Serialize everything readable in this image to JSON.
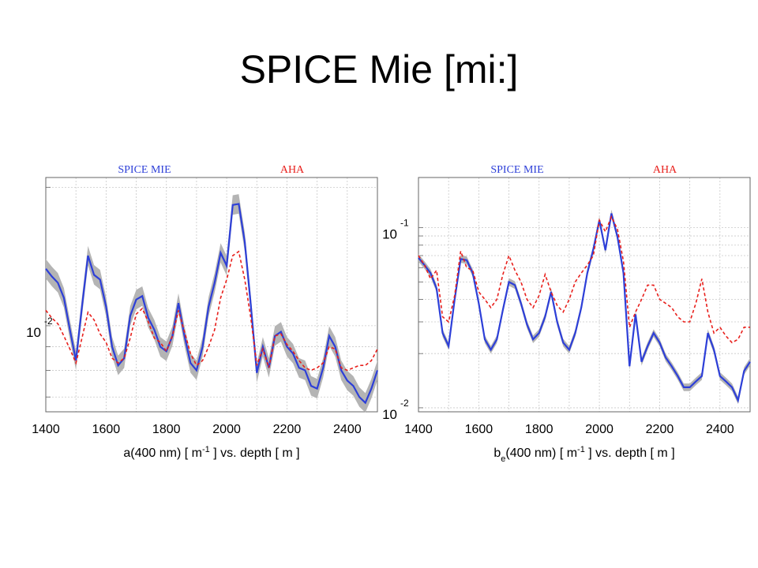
{
  "slide": {
    "title": "SPICE Mie [mi:]"
  },
  "chart_data": [
    {
      "type": "line",
      "xlabel_parts": [
        "a(400 nm) [ m",
        "-1",
        " ] vs. depth [ m ]"
      ],
      "xlim": [
        1400,
        2500
      ],
      "xticks": [
        1400,
        1600,
        1800,
        2000,
        2200,
        2400
      ],
      "yscale": "log",
      "ylim": [
        0.0065,
        0.021
      ],
      "yticklabels": [
        {
          "base": "10",
          "exp": "-2",
          "value": 0.01
        }
      ],
      "grid": true,
      "legend": [
        {
          "name": "SPICE MIE",
          "color": "#2d3fd8"
        },
        {
          "name": "AHA",
          "color": "#e8201c"
        }
      ],
      "x": [
        1400,
        1420,
        1440,
        1460,
        1480,
        1500,
        1520,
        1540,
        1560,
        1580,
        1600,
        1620,
        1640,
        1660,
        1680,
        1700,
        1720,
        1740,
        1760,
        1780,
        1800,
        1820,
        1840,
        1860,
        1880,
        1900,
        1920,
        1940,
        1960,
        1980,
        2000,
        2020,
        2040,
        2060,
        2080,
        2100,
        2120,
        2140,
        2160,
        2180,
        2200,
        2220,
        2240,
        2260,
        2280,
        2300,
        2320,
        2340,
        2360,
        2380,
        2400,
        2420,
        2440,
        2460,
        2480,
        2500
      ],
      "series": [
        {
          "name": "SPICE MIE",
          "color": "#2d3fd8",
          "values": [
            0.0133,
            0.0128,
            0.0124,
            0.0115,
            0.0098,
            0.0084,
            0.011,
            0.0142,
            0.0129,
            0.0126,
            0.011,
            0.009,
            0.0082,
            0.0085,
            0.0105,
            0.0114,
            0.0116,
            0.0104,
            0.0098,
            0.009,
            0.0088,
            0.0095,
            0.0112,
            0.0095,
            0.0083,
            0.008,
            0.009,
            0.011,
            0.0124,
            0.0144,
            0.0135,
            0.0183,
            0.0184,
            0.0152,
            0.0111,
            0.0079,
            0.009,
            0.0081,
            0.0095,
            0.0097,
            0.009,
            0.0087,
            0.0081,
            0.008,
            0.0074,
            0.0073,
            0.0081,
            0.0095,
            0.009,
            0.008,
            0.0076,
            0.0074,
            0.007,
            0.0068,
            0.0073,
            0.008
          ]
        },
        {
          "name": "AHA",
          "color": "#e8201c",
          "values": [
            0.0108,
            0.0104,
            0.0101,
            0.0095,
            0.0089,
            0.0083,
            0.0094,
            0.0107,
            0.0103,
            0.0096,
            0.0092,
            0.0085,
            0.0083,
            0.0085,
            0.0094,
            0.0106,
            0.0109,
            0.0102,
            0.0094,
            0.0092,
            0.0088,
            0.0095,
            0.0108,
            0.0097,
            0.0087,
            0.0082,
            0.0084,
            0.009,
            0.0098,
            0.0115,
            0.0126,
            0.0142,
            0.0145,
            0.0126,
            0.0104,
            0.0082,
            0.0089,
            0.0081,
            0.0095,
            0.0096,
            0.0091,
            0.0088,
            0.0084,
            0.0081,
            0.008,
            0.0081,
            0.0083,
            0.009,
            0.0089,
            0.0081,
            0.008,
            0.0081,
            0.0082,
            0.0082,
            0.0084,
            0.0089
          ]
        }
      ]
    },
    {
      "type": "line",
      "xlabel_parts": [
        "b",
        "e",
        "(400 nm) [ m",
        "-1",
        " ] vs. depth [ m ]"
      ],
      "xlim": [
        1400,
        2500
      ],
      "xticks": [
        1400,
        1600,
        1800,
        2000,
        2200,
        2400
      ],
      "yscale": "log",
      "ylim": [
        0.0095,
        0.19
      ],
      "yticklabels": [
        {
          "base": "10",
          "exp": "-1",
          "value": 0.1
        },
        {
          "base": "10",
          "exp": "-2",
          "value": 0.01
        }
      ],
      "grid": true,
      "legend": [
        {
          "name": "SPICE MIE",
          "color": "#2d3fd8"
        },
        {
          "name": "AHA",
          "color": "#e8201c"
        }
      ],
      "x": [
        1400,
        1420,
        1440,
        1460,
        1480,
        1500,
        1520,
        1540,
        1560,
        1580,
        1600,
        1620,
        1640,
        1660,
        1680,
        1700,
        1720,
        1740,
        1760,
        1780,
        1800,
        1820,
        1840,
        1860,
        1880,
        1900,
        1920,
        1940,
        1960,
        1980,
        2000,
        2020,
        2040,
        2060,
        2080,
        2100,
        2120,
        2140,
        2160,
        2180,
        2200,
        2220,
        2240,
        2260,
        2280,
        2300,
        2320,
        2340,
        2360,
        2380,
        2400,
        2420,
        2440,
        2460,
        2480,
        2500
      ],
      "series": [
        {
          "name": "SPICE MIE",
          "color": "#2d3fd8",
          "values": [
            0.068,
            0.062,
            0.056,
            0.046,
            0.026,
            0.022,
            0.04,
            0.067,
            0.066,
            0.056,
            0.038,
            0.024,
            0.021,
            0.024,
            0.035,
            0.05,
            0.048,
            0.038,
            0.029,
            0.024,
            0.026,
            0.032,
            0.044,
            0.03,
            0.023,
            0.021,
            0.026,
            0.036,
            0.056,
            0.076,
            0.11,
            0.075,
            0.12,
            0.089,
            0.056,
            0.017,
            0.033,
            0.018,
            0.022,
            0.026,
            0.023,
            0.019,
            0.017,
            0.015,
            0.013,
            0.013,
            0.014,
            0.015,
            0.026,
            0.021,
            0.015,
            0.014,
            0.013,
            0.011,
            0.016,
            0.018
          ]
        },
        {
          "name": "AHA",
          "color": "#e8201c",
          "values": [
            0.07,
            0.062,
            0.052,
            0.058,
            0.032,
            0.03,
            0.042,
            0.074,
            0.06,
            0.058,
            0.044,
            0.04,
            0.036,
            0.04,
            0.055,
            0.07,
            0.058,
            0.05,
            0.04,
            0.036,
            0.042,
            0.055,
            0.044,
            0.037,
            0.034,
            0.04,
            0.05,
            0.056,
            0.062,
            0.07,
            0.11,
            0.095,
            0.115,
            0.098,
            0.065,
            0.028,
            0.034,
            0.04,
            0.048,
            0.048,
            0.04,
            0.038,
            0.036,
            0.032,
            0.03,
            0.03,
            0.038,
            0.052,
            0.034,
            0.026,
            0.028,
            0.025,
            0.023,
            0.024,
            0.028,
            0.028
          ]
        }
      ]
    }
  ]
}
